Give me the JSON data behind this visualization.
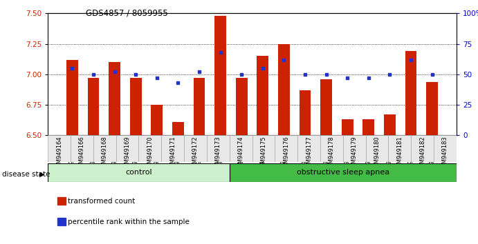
{
  "title": "GDS4857 / 8059955",
  "samples": [
    "GSM949164",
    "GSM949166",
    "GSM949168",
    "GSM949169",
    "GSM949170",
    "GSM949171",
    "GSM949172",
    "GSM949173",
    "GSM949174",
    "GSM949175",
    "GSM949176",
    "GSM949177",
    "GSM949178",
    "GSM949179",
    "GSM949180",
    "GSM949181",
    "GSM949182",
    "GSM949183"
  ],
  "red_values": [
    7.12,
    6.97,
    7.1,
    6.97,
    6.75,
    6.61,
    6.97,
    7.48,
    6.97,
    7.15,
    7.25,
    6.87,
    6.96,
    6.63,
    6.63,
    6.67,
    7.19,
    6.94
  ],
  "blue_values": [
    55,
    50,
    52,
    50,
    47,
    43,
    52,
    68,
    50,
    55,
    62,
    50,
    50,
    47,
    47,
    50,
    62,
    50
  ],
  "control_count": 8,
  "ylim_left": [
    6.5,
    7.5
  ],
  "ylim_right": [
    0,
    100
  ],
  "yticks_left": [
    6.5,
    6.75,
    7.0,
    7.25,
    7.5
  ],
  "yticks_right": [
    0,
    25,
    50,
    75,
    100
  ],
  "ytick_labels_right": [
    "0",
    "25",
    "50",
    "75",
    "100%"
  ],
  "grid_values": [
    6.75,
    7.0,
    7.25
  ],
  "bar_color": "#cc2200",
  "blue_color": "#2233cc",
  "control_color": "#ccf0cc",
  "apnea_color": "#44bb44",
  "control_label": "control",
  "apnea_label": "obstructive sleep apnea",
  "disease_state_label": "disease state",
  "legend_red": "transformed count",
  "legend_blue": "percentile rank within the sample",
  "bar_width": 0.55
}
